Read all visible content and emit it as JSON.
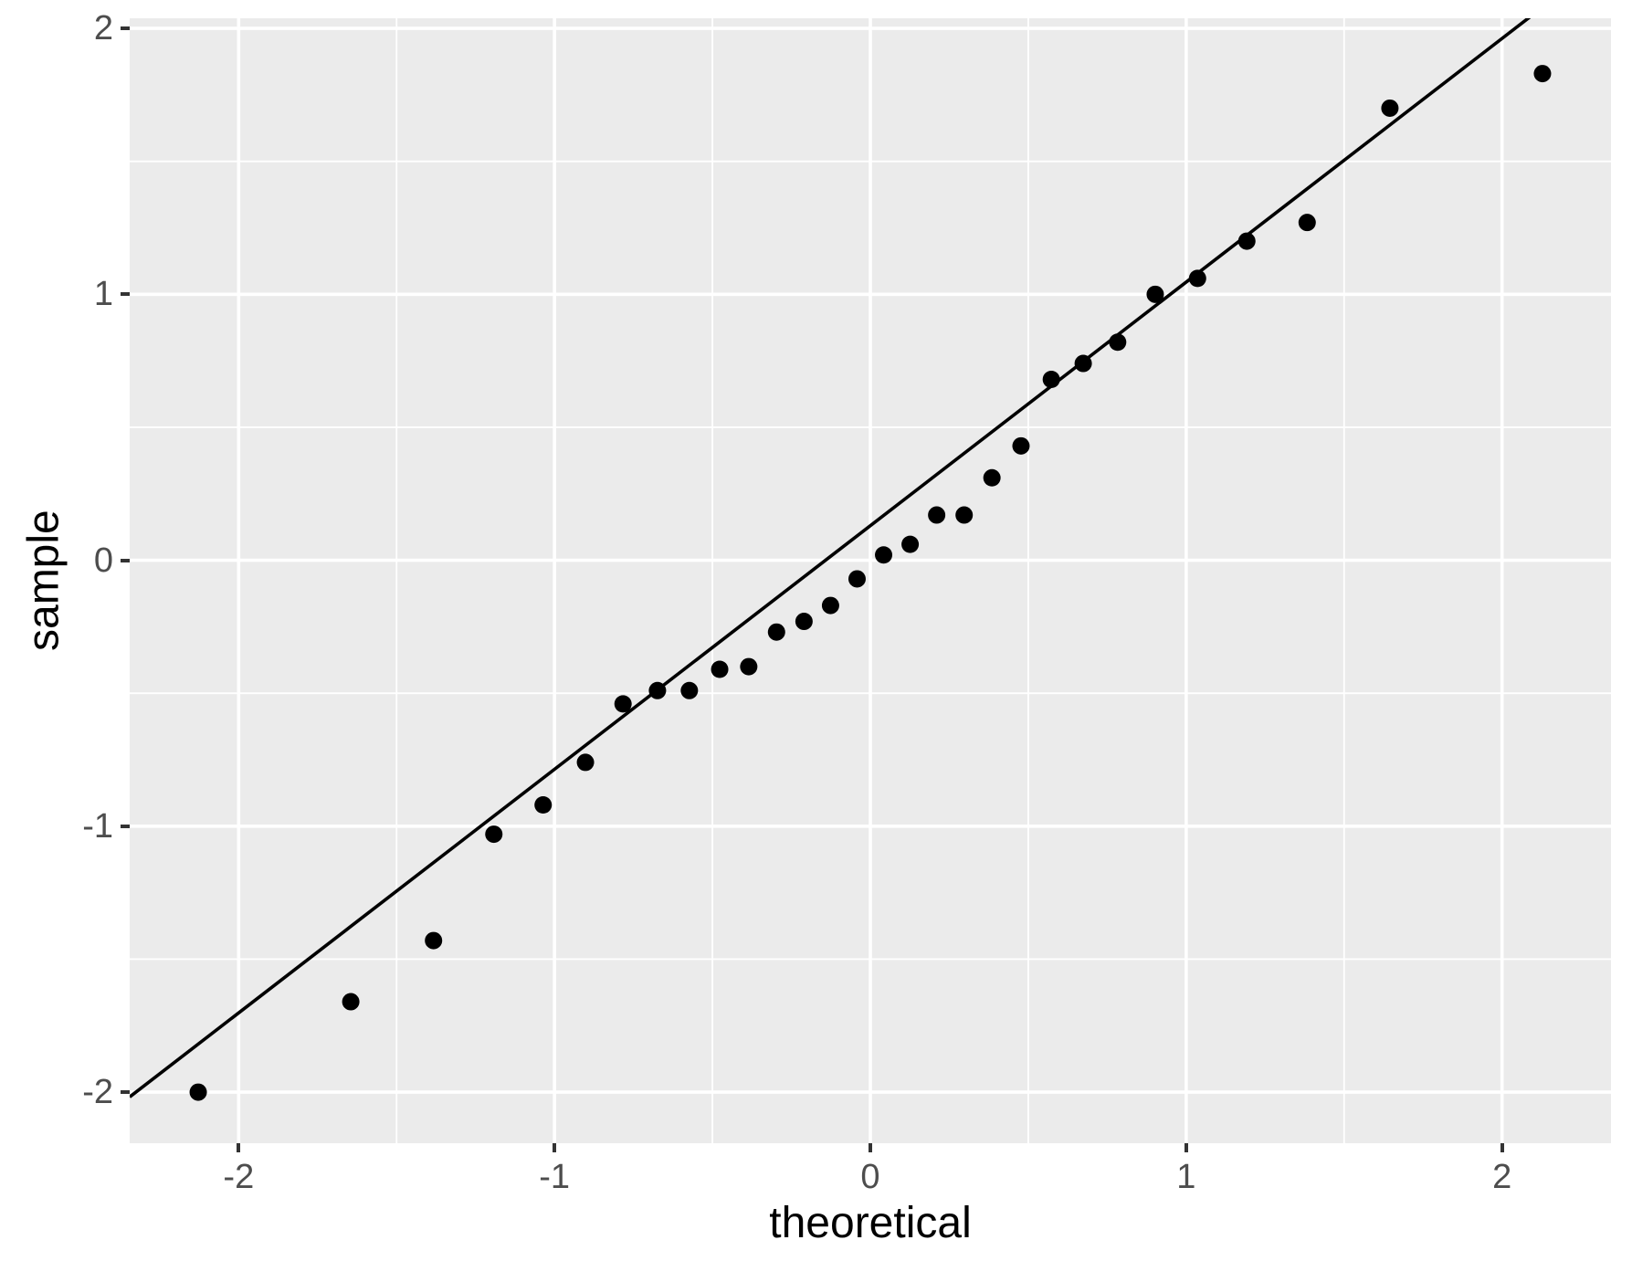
{
  "chart_data": {
    "type": "scatter",
    "title": "",
    "xlabel": "theoretical",
    "ylabel": "sample",
    "legend": "none",
    "grid": "white major and minor gridlines on grey panel",
    "xlim": [
      -2.345,
      2.345
    ],
    "ylim": [
      -2.192,
      2.038
    ],
    "x_ticks": [
      -2,
      -1,
      0,
      1,
      2
    ],
    "y_ticks": [
      -2,
      -1,
      0,
      1,
      2
    ],
    "x_tick_labels": [
      "-2",
      "-1",
      "0",
      "1",
      "2"
    ],
    "y_tick_labels": [
      "-2",
      "-1",
      "0",
      "1",
      "2"
    ],
    "x_minor_ticks": [
      -1.5,
      -0.5,
      0.5,
      1.5
    ],
    "y_minor_ticks": [
      -1.5,
      -0.5,
      0.5,
      1.5
    ],
    "points": [
      [
        -2.128,
        -2.0
      ],
      [
        -1.645,
        -1.66
      ],
      [
        -1.383,
        -1.43
      ],
      [
        -1.192,
        -1.03
      ],
      [
        -1.036,
        -0.92
      ],
      [
        -0.902,
        -0.76
      ],
      [
        -0.783,
        -0.54
      ],
      [
        -0.674,
        -0.49
      ],
      [
        -0.573,
        -0.49
      ],
      [
        -0.477,
        -0.41
      ],
      [
        -0.385,
        -0.4
      ],
      [
        -0.297,
        -0.27
      ],
      [
        -0.21,
        -0.23
      ],
      [
        -0.126,
        -0.17
      ],
      [
        -0.042,
        -0.07
      ],
      [
        0.042,
        0.02
      ],
      [
        0.126,
        0.06
      ],
      [
        0.21,
        0.17
      ],
      [
        0.297,
        0.17
      ],
      [
        0.385,
        0.31
      ],
      [
        0.477,
        0.43
      ],
      [
        0.573,
        0.68
      ],
      [
        0.674,
        0.74
      ],
      [
        0.783,
        0.82
      ],
      [
        0.902,
        1.0
      ],
      [
        1.036,
        1.06
      ],
      [
        1.192,
        1.2
      ],
      [
        1.383,
        1.27
      ],
      [
        1.645,
        1.7
      ],
      [
        2.128,
        1.83
      ]
    ],
    "ref_line": {
      "slope": 0.916,
      "intercept": 0.13
    },
    "colors": {
      "panel_bg": "#EBEBEB",
      "gridline": "#FFFFFF",
      "point": "#000000",
      "ref_line": "#000000",
      "tick_mark": "#333333",
      "tick_label": "#4D4D4D",
      "axis_title": "#000000",
      "page_bg": "#FFFFFF"
    },
    "point_radius": 9.5,
    "ref_line_width": 3.6,
    "major_grid_width": 3.6,
    "minor_grid_width": 1.8
  }
}
